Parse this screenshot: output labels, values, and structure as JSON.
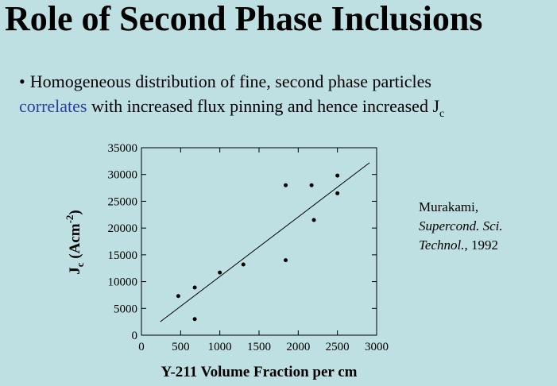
{
  "slide_title": "Role of Second Phase Inclusions",
  "bullet": {
    "marker": "•",
    "line1": "Homogeneous distribution of fine, second phase particles",
    "highlight": "correlates",
    "line2": " with increased flux pinning and hence increased J",
    "sub": "c"
  },
  "citation": {
    "author": "Murakami,",
    "journal1": "Supercond. Sci.",
    "journal2": "Technol.",
    "year": ", 1992"
  },
  "chart_data": {
    "type": "scatter",
    "x_label": "Y-211 Volume Fraction per cm",
    "y_label": {
      "main": "J",
      "sub": "c",
      "unit": " (Acm",
      "sup": "-2",
      "close": ")"
    },
    "xlim": [
      0,
      3000
    ],
    "xticks": [
      0,
      500,
      1000,
      1500,
      2000,
      2500,
      3000
    ],
    "ylim": [
      0,
      35000
    ],
    "yticks": [
      0,
      5000,
      10000,
      15000,
      20000,
      25000,
      30000,
      35000
    ],
    "color": "#000000",
    "x": [
      470,
      680,
      680,
      1000,
      1300,
      1840,
      1840,
      2170,
      2200,
      2500,
      2500
    ],
    "y": [
      7300,
      8900,
      3000,
      11700,
      13200,
      28000,
      14000,
      28000,
      21500,
      29800,
      26500
    ],
    "fit": {
      "x": [
        240,
        2910
      ],
      "y": [
        2500,
        32200
      ]
    }
  }
}
